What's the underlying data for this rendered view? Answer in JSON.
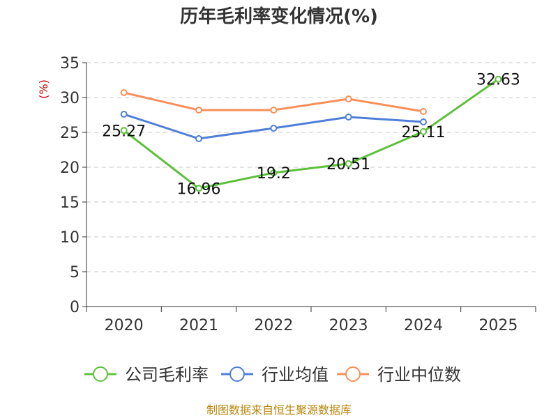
{
  "chart_data": {
    "type": "line",
    "title": "历年毛利率变化情况(%)",
    "xlabel": "",
    "ylabel": "(%)",
    "categories": [
      "2020",
      "2021",
      "2022",
      "2023",
      "2024",
      "2025"
    ],
    "ylim": [
      0,
      35
    ],
    "yticks": [
      0,
      5,
      10,
      15,
      20,
      25,
      30,
      35
    ],
    "grid": true,
    "legend_position": "bottom",
    "series": [
      {
        "name": "公司毛利率",
        "color": "#5cc13a",
        "values": [
          25.27,
          16.96,
          19.2,
          20.51,
          25.11,
          32.63
        ],
        "labels": [
          "25.27",
          "16.96",
          "19.2",
          "20.51",
          "25.11",
          "32.63"
        ]
      },
      {
        "name": "行业均值",
        "color": "#4f7fd8",
        "values": [
          27.6,
          24.1,
          25.6,
          27.2,
          26.5,
          null
        ]
      },
      {
        "name": "行业中位数",
        "color": "#f98f5a",
        "values": [
          30.7,
          28.2,
          28.2,
          29.8,
          28.0,
          null
        ]
      }
    ],
    "source": "制图数据来自恒生聚源数据库"
  }
}
